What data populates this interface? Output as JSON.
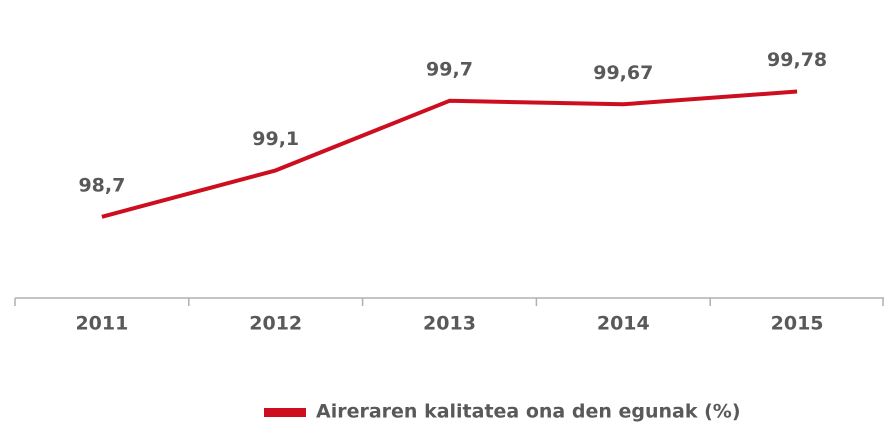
{
  "chart_data": {
    "type": "line",
    "categories": [
      "2011",
      "2012",
      "2013",
      "2014",
      "2015"
    ],
    "series": [
      {
        "name": "Aireraren kalitatea ona den egunak (%)",
        "color": "#cc0e1f",
        "values": [
          98.7,
          99.1,
          99.7,
          99.67,
          99.78
        ],
        "value_labels": [
          "98,7",
          "99,1",
          "99,7",
          "99,67",
          "99,78"
        ]
      }
    ],
    "ylim": [
      98,
      100.5
    ],
    "legend": "bottom"
  }
}
